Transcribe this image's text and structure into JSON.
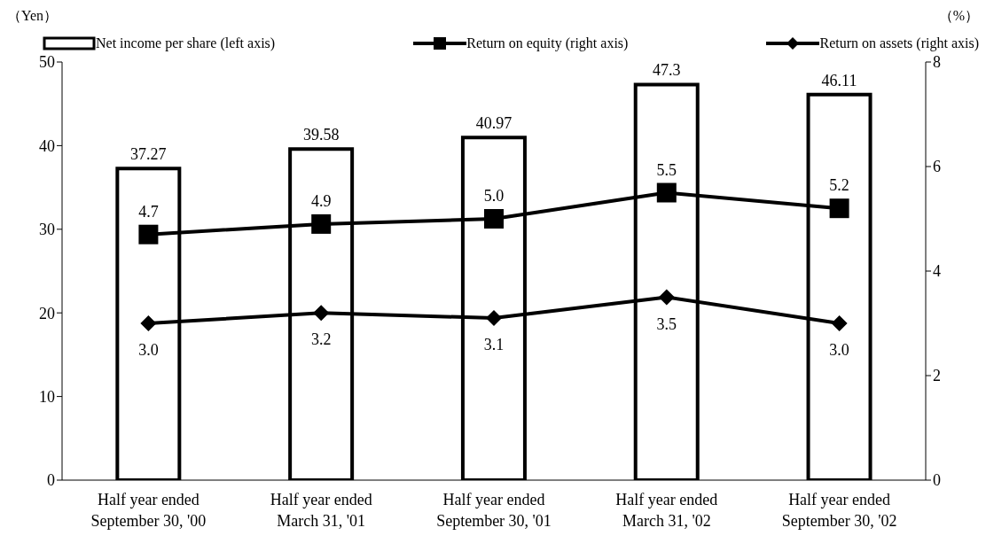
{
  "chart_data": {
    "type": "bar",
    "ylabel": "（Yen）",
    "y2label": "（%）",
    "categories": [
      "Half year ended September 30, '00",
      "Half year ended March 31, '01",
      "Half year ended September 30, '01",
      "Half year ended March 31, '02",
      "Half year ended September 30, '02"
    ],
    "series": [
      {
        "name": "Net income per share (left axis)",
        "color": "#ffffff",
        "values": [
          37.27,
          39.58,
          40.97,
          47.3,
          46.11
        ]
      },
      {
        "name": "Return on equity (right axis)",
        "type": "line",
        "axis": "y2",
        "marker": "square",
        "color": "#000000",
        "values": [
          4.7,
          4.9,
          5.0,
          5.5,
          5.2
        ],
        "value_labels": [
          "4.7",
          "4.9",
          "5.0",
          "5.5",
          "5.2"
        ]
      },
      {
        "name": "Return on assets (right axis)",
        "type": "line",
        "axis": "y2",
        "marker": "diamond",
        "color": "#000000",
        "values": [
          3.0,
          3.2,
          3.1,
          3.5,
          3.0
        ],
        "value_labels": [
          "3.0",
          "3.2",
          "3.1",
          "3.5",
          "3.0"
        ]
      }
    ],
    "ylim": [
      0,
      50
    ],
    "yticks": [
      0,
      10,
      20,
      30,
      40,
      50
    ],
    "y2lim": [
      0,
      8
    ],
    "y2ticks": [
      0,
      2,
      4,
      6,
      8
    ],
    "data_labels": true,
    "legend": "top",
    "grid": false
  }
}
